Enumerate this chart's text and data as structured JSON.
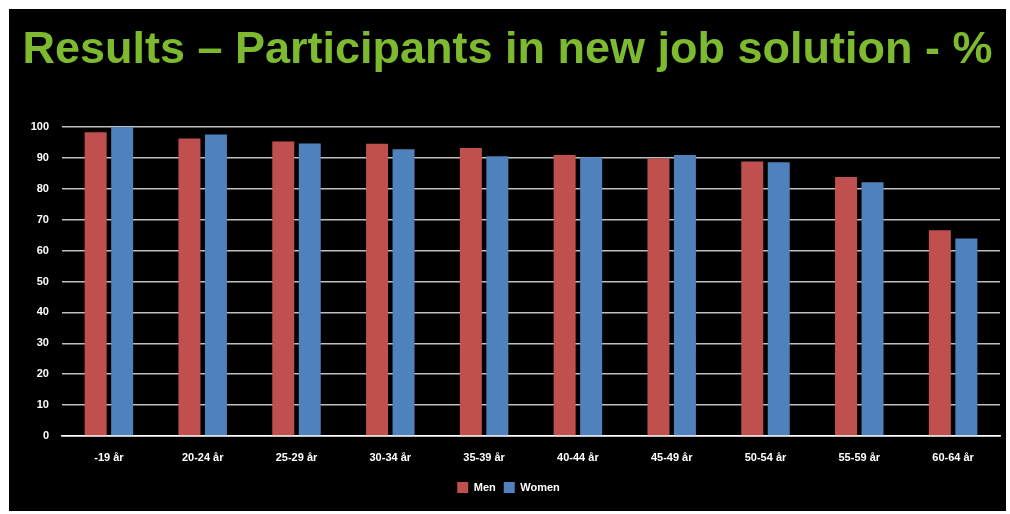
{
  "chart_data": {
    "type": "bar",
    "title": "Results – Participants in new job solution - %",
    "categories": [
      "-19 år",
      "20-24 år",
      "25-29 år",
      "30-34 år",
      "35-39 år",
      "40-44 år",
      "45-49 år",
      "50-54 år",
      "55-59 år",
      "60-64 år"
    ],
    "series": [
      {
        "name": "Men",
        "color": "#c0504d",
        "values": [
          98.3,
          96.3,
          95.3,
          94.6,
          93.2,
          90.9,
          89.8,
          88.8,
          83.8,
          66.6
        ]
      },
      {
        "name": "Women",
        "color": "#4f81bd",
        "values": [
          100,
          97.6,
          94.7,
          92.8,
          90.5,
          90.2,
          90.9,
          88.6,
          82.1,
          63.9
        ]
      }
    ],
    "ylim": [
      0,
      100
    ],
    "yticks": [
      0,
      10,
      20,
      30,
      40,
      50,
      60,
      70,
      80,
      90,
      100
    ],
    "grid": "y",
    "legend": "bottom"
  }
}
